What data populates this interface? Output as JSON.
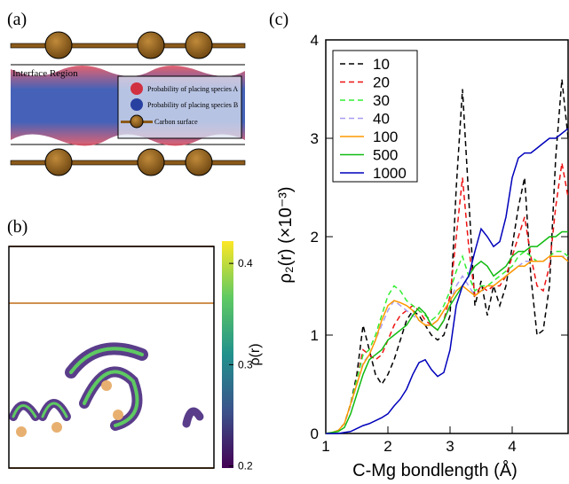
{
  "panels": {
    "a": {
      "label": "(a)",
      "region_label": "Interface Region",
      "legend": [
        "Probability of placing species A",
        "Probability of placing species B",
        "Carbon surface"
      ]
    },
    "b": {
      "label": "(b)",
      "colorbar": {
        "label": "ρ(r)",
        "lim": [
          0.198,
          0.422
        ],
        "ticks": [
          0.2,
          0.3,
          0.4
        ]
      }
    }
  },
  "chart_data": {
    "type": "line",
    "label": "(c)",
    "x_label": "C-Mg bondlength (Å)",
    "y_label": "ρ₂(r) (×10⁻³)",
    "xlim": [
      1,
      4.9
    ],
    "ylim": [
      0,
      4
    ],
    "xticks": [
      1,
      2,
      3,
      4
    ],
    "yticks": [
      0,
      1,
      2,
      3,
      4
    ],
    "x": [
      1.0,
      1.1,
      1.2,
      1.3,
      1.4,
      1.5,
      1.6,
      1.7,
      1.8,
      1.9,
      2.0,
      2.1,
      2.2,
      2.3,
      2.4,
      2.5,
      2.6,
      2.7,
      2.8,
      2.9,
      3.0,
      3.1,
      3.2,
      3.3,
      3.4,
      3.5,
      3.6,
      3.7,
      3.8,
      3.9,
      4.0,
      4.1,
      4.2,
      4.3,
      4.4,
      4.5,
      4.6,
      4.7,
      4.8,
      4.9
    ],
    "series": [
      {
        "name": "10",
        "color": "#000000",
        "dashed": true,
        "values": [
          0,
          0.01,
          0.03,
          0.1,
          0.3,
          0.6,
          1.1,
          0.85,
          0.6,
          0.5,
          0.6,
          0.75,
          0.95,
          1.15,
          1.25,
          1.2,
          1.1,
          1.0,
          0.95,
          1.0,
          1.2,
          2.5,
          3.5,
          2.4,
          1.3,
          1.55,
          1.2,
          1.5,
          1.3,
          1.5,
          1.9,
          2.3,
          2.6,
          1.6,
          1.0,
          1.05,
          1.5,
          2.8,
          3.6,
          3.0
        ]
      },
      {
        "name": "20",
        "color": "#ee1111",
        "dashed": true,
        "values": [
          0,
          0.01,
          0.03,
          0.1,
          0.3,
          0.55,
          0.85,
          0.8,
          0.75,
          0.8,
          0.95,
          1.1,
          1.2,
          1.25,
          1.3,
          1.25,
          1.15,
          1.1,
          1.05,
          1.15,
          1.4,
          2.0,
          2.6,
          1.9,
          1.4,
          1.5,
          1.45,
          1.5,
          1.5,
          1.6,
          1.8,
          2.0,
          2.2,
          1.8,
          1.5,
          1.45,
          1.7,
          2.3,
          2.75,
          2.4
        ]
      },
      {
        "name": "30",
        "color": "#33ee33",
        "dashed": true,
        "values": [
          0,
          0.01,
          0.03,
          0.1,
          0.3,
          0.55,
          0.8,
          0.85,
          1.0,
          1.2,
          1.4,
          1.5,
          1.45,
          1.35,
          1.3,
          1.25,
          1.2,
          1.15,
          1.2,
          1.3,
          1.45,
          1.65,
          1.8,
          1.6,
          1.45,
          1.5,
          1.5,
          1.55,
          1.6,
          1.65,
          1.7,
          1.8,
          1.85,
          1.8,
          1.75,
          1.75,
          1.8,
          1.85,
          1.85,
          1.8
        ]
      },
      {
        "name": "40",
        "color": "#a99cf0",
        "dashed": true,
        "values": [
          0,
          0.01,
          0.03,
          0.1,
          0.28,
          0.5,
          0.72,
          0.8,
          0.95,
          1.1,
          1.25,
          1.35,
          1.3,
          1.25,
          1.2,
          1.15,
          1.1,
          1.1,
          1.15,
          1.25,
          1.35,
          1.5,
          1.6,
          1.5,
          1.4,
          1.45,
          1.5,
          1.5,
          1.55,
          1.6,
          1.65,
          1.7,
          1.75,
          1.75,
          1.75,
          1.75,
          1.8,
          1.8,
          1.8,
          1.8
        ]
      },
      {
        "name": "100",
        "color": "#ff9900",
        "dashed": false,
        "values": [
          0,
          0.01,
          0.03,
          0.1,
          0.3,
          0.5,
          0.7,
          0.8,
          0.95,
          1.15,
          1.3,
          1.35,
          1.33,
          1.3,
          1.25,
          1.15,
          1.1,
          1.1,
          1.15,
          1.25,
          1.35,
          1.45,
          1.5,
          1.45,
          1.4,
          1.45,
          1.5,
          1.5,
          1.55,
          1.6,
          1.65,
          1.7,
          1.7,
          1.75,
          1.75,
          1.75,
          1.8,
          1.8,
          1.8,
          1.75
        ]
      },
      {
        "name": "500",
        "color": "#11bb11",
        "dashed": false,
        "values": [
          0,
          0.01,
          0.02,
          0.06,
          0.2,
          0.4,
          0.6,
          0.75,
          0.8,
          0.85,
          0.95,
          1.0,
          1.05,
          1.1,
          1.2,
          1.28,
          1.22,
          1.1,
          1.05,
          1.15,
          1.3,
          1.4,
          1.5,
          1.6,
          1.7,
          1.75,
          1.7,
          1.6,
          1.65,
          1.7,
          1.8,
          1.85,
          1.85,
          1.9,
          1.9,
          1.95,
          2.0,
          2.0,
          2.05,
          2.05
        ]
      },
      {
        "name": "1000",
        "color": "#0000bb",
        "dashed": false,
        "values": [
          0,
          0,
          0,
          0.01,
          0.02,
          0.05,
          0.08,
          0.1,
          0.13,
          0.16,
          0.2,
          0.28,
          0.35,
          0.45,
          0.6,
          0.72,
          0.75,
          0.65,
          0.58,
          0.62,
          0.85,
          1.3,
          1.5,
          1.6,
          1.85,
          2.08,
          2.0,
          1.9,
          1.95,
          2.2,
          2.6,
          2.8,
          2.85,
          2.85,
          2.9,
          2.95,
          3.0,
          3.0,
          3.05,
          3.1
        ]
      }
    ]
  }
}
